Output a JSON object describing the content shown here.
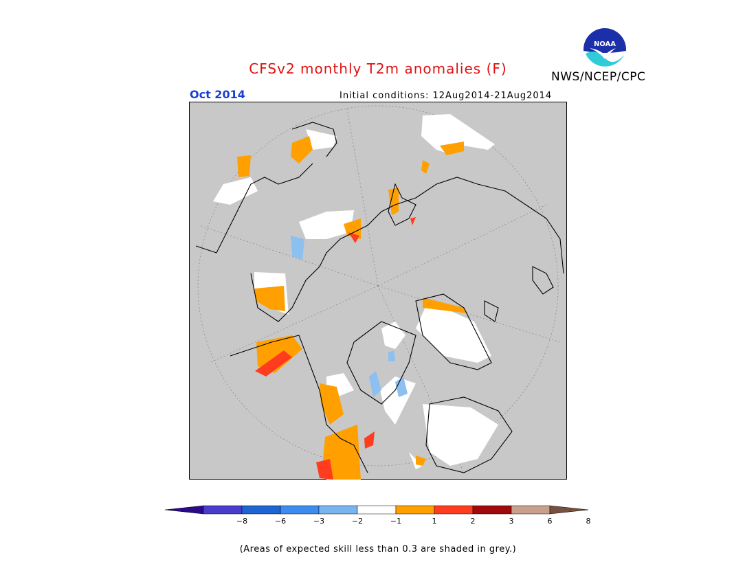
{
  "title": "CFSv2 monthly T2m anomalies (F)",
  "month": "Oct 2014",
  "initial_conditions": "Initial conditions: 12Aug2014-21Aug2014",
  "agency": "NWS/NCEP/CPC",
  "logo_text": "NOAA",
  "note": "(Areas of expected skill less than 0.3 are shaded in grey.)",
  "colors": {
    "grey_low_skill": "#c8c8c8",
    "white_neutral": "#ffffff",
    "orange_1_2": "#ffa000",
    "red_2_3": "#ff3c1e",
    "blue_-2_-1": "#8cc0f0",
    "brown_coast": "#000000"
  },
  "legend": {
    "colors": [
      "#2a0a8a",
      "#4a3ccc",
      "#1e64d2",
      "#3c8cf0",
      "#78b4f0",
      "#ffffff",
      "#ffa000",
      "#ff3c1e",
      "#a00a0a",
      "#c8a08c",
      "#785040"
    ],
    "ticks": [
      "−8",
      "−6",
      "−3",
      "−2",
      "−1",
      "1",
      "2",
      "3",
      "6",
      "8"
    ]
  }
}
